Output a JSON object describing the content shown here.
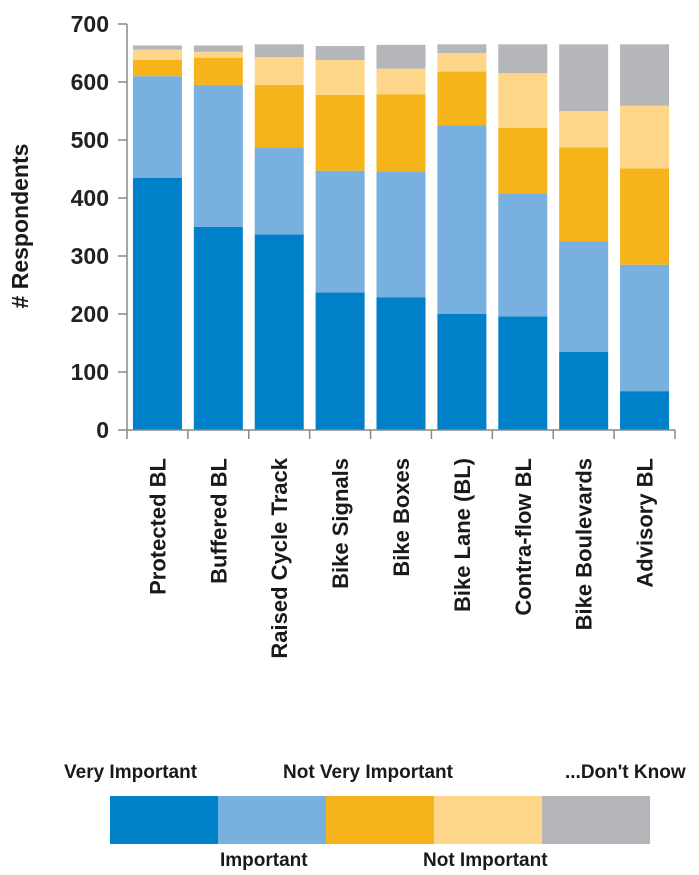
{
  "chart_data": {
    "type": "bar",
    "stacked": true,
    "title": "",
    "xlabel": "",
    "ylabel": "# Respondents",
    "ylim": [
      0,
      700
    ],
    "yticks": [
      0,
      100,
      200,
      300,
      400,
      500,
      600,
      700
    ],
    "grid": false,
    "legend_placement": "bottom",
    "categories": [
      "Protected BL",
      "Buffered BL",
      "Raised Cycle Track",
      "Bike Signals",
      "Bike Boxes",
      "Bike Lane (BL)",
      "Contra-flow BL",
      "Bike Boulevards",
      "Advisory BL"
    ],
    "series": [
      {
        "name": "Very Important",
        "color": "#0080c8",
        "values": [
          435,
          350,
          337,
          237,
          229,
          200,
          196,
          135,
          67
        ]
      },
      {
        "name": "Important",
        "color": "#78b0e0",
        "values": [
          175,
          245,
          150,
          210,
          217,
          325,
          212,
          190,
          218
        ]
      },
      {
        "name": "Not Very Important",
        "color": "#f6b41a",
        "values": [
          28,
          47,
          108,
          131,
          133,
          93,
          113,
          162,
          166
        ]
      },
      {
        "name": "Not Important",
        "color": "#fdd68a",
        "values": [
          18,
          10,
          48,
          60,
          44,
          32,
          94,
          63,
          108
        ]
      },
      {
        "name": "...Don't Know",
        "color": "#b5b6ba",
        "values": [
          7,
          11,
          22,
          24,
          41,
          15,
          50,
          115,
          106
        ]
      }
    ]
  }
}
